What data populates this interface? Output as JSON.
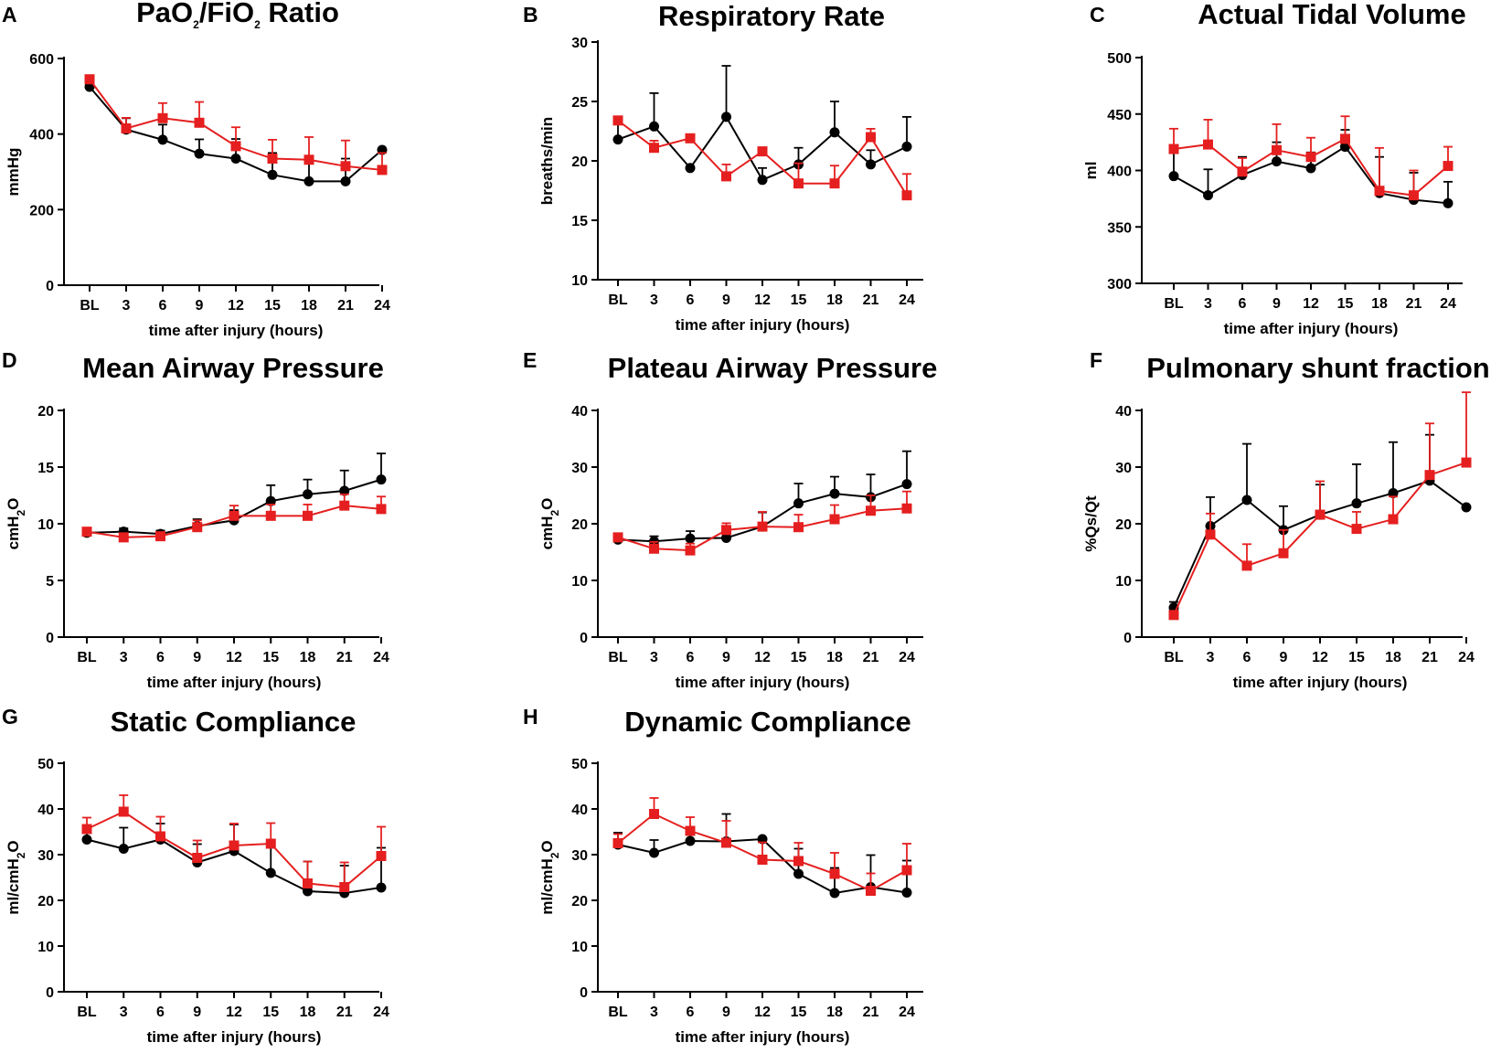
{
  "chart_data": [
    {
      "letter": "A",
      "title": {
        "pre": "PaO",
        "sub1": "2",
        "mid": "/FiO",
        "sub2": "2",
        "post": " Ratio"
      },
      "type": "line",
      "xlabel": "time after injury (hours)",
      "ylabel": {
        "pre": "mmHg"
      },
      "categories": [
        "BL",
        "3",
        "6",
        "9",
        "12",
        "15",
        "18",
        "21",
        "24"
      ],
      "ylim": [
        0,
        600
      ],
      "yticks": [
        0,
        200,
        400,
        600
      ],
      "series": [
        {
          "name": "black",
          "color": "#000000",
          "marker": "circle",
          "values": [
            525,
            412,
            385,
            348,
            335,
            292,
            275,
            275,
            358
          ],
          "errors": [
            8,
            30,
            40,
            38,
            52,
            58,
            65,
            60,
            0
          ]
        },
        {
          "name": "red",
          "color": "#e51f1f",
          "marker": "square",
          "values": [
            545,
            415,
            442,
            430,
            368,
            335,
            332,
            315,
            305
          ],
          "errors": [
            0,
            28,
            40,
            55,
            50,
            50,
            60,
            68,
            45
          ]
        }
      ]
    },
    {
      "letter": "B",
      "title": {
        "pre": "Respiratory Rate"
      },
      "type": "line",
      "xlabel": "time after injury (hours)",
      "ylabel": {
        "pre": "breaths/min"
      },
      "categories": [
        "BL",
        "3",
        "6",
        "9",
        "12",
        "15",
        "18",
        "21",
        "24"
      ],
      "ylim": [
        10,
        30
      ],
      "yticks": [
        10,
        15,
        20,
        25,
        30
      ],
      "series": [
        {
          "name": "black",
          "color": "#000000",
          "marker": "circle",
          "values": [
            21.8,
            22.9,
            19.4,
            23.7,
            18.4,
            19.7,
            22.4,
            19.7,
            21.2
          ],
          "errors": [
            1.5,
            2.8,
            0,
            4.3,
            1.0,
            1.4,
            2.6,
            1.2,
            2.5
          ]
        },
        {
          "name": "red",
          "color": "#e51f1f",
          "marker": "square",
          "values": [
            23.4,
            21.1,
            21.9,
            18.7,
            20.8,
            18.1,
            18.1,
            22.0,
            17.1
          ],
          "errors": [
            0,
            0.6,
            0,
            1.0,
            0,
            1.7,
            1.5,
            0.7,
            1.8
          ]
        }
      ]
    },
    {
      "letter": "C",
      "title": {
        "pre": "Actual Tidal Volume"
      },
      "type": "line",
      "xlabel": "time after injury (hours)",
      "ylabel": {
        "pre": "ml"
      },
      "categories": [
        "BL",
        "3",
        "6",
        "9",
        "12",
        "15",
        "18",
        "21",
        "24"
      ],
      "ylim": [
        300,
        500
      ],
      "yticks": [
        300,
        350,
        400,
        450,
        500
      ],
      "series": [
        {
          "name": "black",
          "color": "#000000",
          "marker": "circle",
          "values": [
            395,
            378,
            396,
            408,
            402,
            421,
            380,
            374,
            371
          ],
          "errors": [
            23,
            23,
            16,
            17,
            14,
            15,
            32,
            24,
            19
          ]
        },
        {
          "name": "red",
          "color": "#e51f1f",
          "marker": "square",
          "values": [
            419,
            423,
            399,
            418,
            412,
            428,
            382,
            378,
            404
          ],
          "errors": [
            18,
            22,
            12,
            23,
            17,
            20,
            38,
            22,
            17
          ]
        }
      ]
    },
    {
      "letter": "D",
      "title": {
        "pre": "Mean Airway Pressure"
      },
      "type": "line",
      "xlabel": "time after injury (hours)",
      "ylabel": {
        "pre": "cmH",
        "sub1": "2",
        "mid": "O"
      },
      "categories": [
        "BL",
        "3",
        "6",
        "9",
        "12",
        "15",
        "18",
        "21",
        "24"
      ],
      "ylim": [
        0,
        20
      ],
      "yticks": [
        0,
        5,
        10,
        15,
        20
      ],
      "series": [
        {
          "name": "black",
          "color": "#000000",
          "marker": "circle",
          "values": [
            9.2,
            9.3,
            9.1,
            9.8,
            10.3,
            12.0,
            12.6,
            12.9,
            13.9
          ],
          "errors": [
            0,
            0.3,
            0.3,
            0.6,
            0.9,
            1.4,
            1.3,
            1.8,
            2.3
          ]
        },
        {
          "name": "red",
          "color": "#e51f1f",
          "marker": "square",
          "values": [
            9.3,
            8.8,
            8.9,
            9.7,
            10.7,
            10.7,
            10.7,
            11.6,
            11.3
          ],
          "errors": [
            0.2,
            0.3,
            0.3,
            0.6,
            0.9,
            1.0,
            1.0,
            1.0,
            1.1
          ]
        }
      ]
    },
    {
      "letter": "E",
      "title": {
        "pre": "Plateau Airway Pressure"
      },
      "type": "line",
      "xlabel": "time after injury (hours)",
      "ylabel": {
        "pre": "cmH",
        "sub1": "2",
        "mid": "O"
      },
      "categories": [
        "BL",
        "3",
        "6",
        "9",
        "12",
        "15",
        "18",
        "21",
        "24"
      ],
      "ylim": [
        0,
        40
      ],
      "yticks": [
        0,
        10,
        20,
        30,
        40
      ],
      "series": [
        {
          "name": "black",
          "color": "#000000",
          "marker": "circle",
          "values": [
            17.2,
            16.9,
            17.4,
            17.5,
            19.5,
            23.6,
            25.3,
            24.7,
            27.0
          ],
          "errors": [
            0,
            0.9,
            1.3,
            1.3,
            2.5,
            3.5,
            3.0,
            4.0,
            5.8
          ]
        },
        {
          "name": "red",
          "color": "#e51f1f",
          "marker": "square",
          "values": [
            17.6,
            15.6,
            15.3,
            18.9,
            19.5,
            19.4,
            20.8,
            22.3,
            22.7
          ],
          "errors": [
            0,
            1.2,
            1.2,
            1.2,
            2.6,
            2.2,
            2.5,
            2.7,
            3.0
          ]
        }
      ]
    },
    {
      "letter": "F",
      "title": {
        "pre": "Pulmonary shunt fraction"
      },
      "type": "line",
      "xlabel": "time after injury (hours)",
      "ylabel": {
        "pre": "%Qs/Qt"
      },
      "categories": [
        "BL",
        "3",
        "6",
        "9",
        "12",
        "15",
        "18",
        "21",
        "24"
      ],
      "ylim": [
        0,
        40
      ],
      "yticks": [
        0,
        10,
        20,
        30,
        40
      ],
      "series": [
        {
          "name": "black",
          "color": "#000000",
          "marker": "circle",
          "values": [
            5.2,
            19.6,
            24.2,
            18.9,
            21.6,
            23.6,
            25.4,
            27.6,
            22.9
          ],
          "errors": [
            1.0,
            5.1,
            9.9,
            4.2,
            5.3,
            6.9,
            9.0,
            8.1,
            0
          ]
        },
        {
          "name": "red",
          "color": "#e51f1f",
          "marker": "square",
          "values": [
            3.9,
            18.1,
            12.6,
            14.8,
            21.6,
            19.1,
            20.8,
            28.6,
            30.8
          ],
          "errors": [
            0,
            3.7,
            3.8,
            4.1,
            5.9,
            3.0,
            4.0,
            9.1,
            12.4
          ]
        }
      ]
    },
    {
      "letter": "G",
      "title": {
        "pre": "Static Compliance"
      },
      "type": "line",
      "xlabel": "time after injury (hours)",
      "ylabel": {
        "pre": "ml/cmH",
        "sub1": "2",
        "mid": "O"
      },
      "categories": [
        "BL",
        "3",
        "6",
        "9",
        "12",
        "15",
        "18",
        "21",
        "24"
      ],
      "ylim": [
        0,
        50
      ],
      "yticks": [
        0,
        10,
        20,
        30,
        40,
        50
      ],
      "series": [
        {
          "name": "black",
          "color": "#000000",
          "marker": "circle",
          "values": [
            33.3,
            31.3,
            33.3,
            28.3,
            30.8,
            26.0,
            22.0,
            21.6,
            22.8
          ],
          "errors": [
            3.1,
            4.6,
            3.5,
            4.0,
            5.8,
            6.7,
            6.5,
            6.0,
            8.7
          ]
        },
        {
          "name": "red",
          "color": "#e51f1f",
          "marker": "square",
          "values": [
            35.6,
            39.4,
            34.0,
            29.3,
            32.0,
            32.4,
            23.7,
            22.9,
            29.7
          ],
          "errors": [
            2.5,
            3.6,
            4.3,
            3.8,
            4.8,
            4.5,
            4.8,
            5.4,
            6.4
          ]
        }
      ]
    },
    {
      "letter": "H",
      "title": {
        "pre": "Dynamic Compliance"
      },
      "type": "line",
      "xlabel": "time after injury (hours)",
      "ylabel": {
        "pre": "ml/cmH",
        "sub1": "2",
        "mid": "O"
      },
      "categories": [
        "BL",
        "3",
        "6",
        "9",
        "12",
        "15",
        "18",
        "21",
        "24"
      ],
      "ylim": [
        0,
        50
      ],
      "yticks": [
        0,
        10,
        20,
        30,
        40,
        50
      ],
      "series": [
        {
          "name": "black",
          "color": "#000000",
          "marker": "circle",
          "values": [
            32.2,
            30.4,
            33.0,
            32.9,
            33.4,
            25.8,
            21.6,
            22.9,
            21.7
          ],
          "errors": [
            2.6,
            2.8,
            2.8,
            6.0,
            0,
            5.5,
            5.5,
            7.0,
            7.0
          ]
        },
        {
          "name": "red",
          "color": "#e51f1f",
          "marker": "square",
          "values": [
            32.5,
            38.9,
            35.2,
            32.6,
            28.9,
            28.6,
            25.8,
            22.1,
            26.6
          ],
          "errors": [
            2.0,
            3.5,
            3.0,
            4.8,
            3.8,
            4.0,
            4.6,
            3.8,
            5.8
          ]
        }
      ]
    }
  ]
}
